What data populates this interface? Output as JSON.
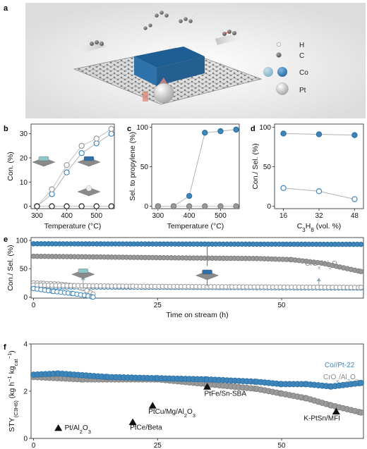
{
  "panel_a": {
    "label": "a",
    "legend": [
      {
        "symbol": "H",
        "color": "#f2f2f2"
      },
      {
        "symbol": "C",
        "color": "#6e6e6e"
      },
      {
        "symbol": "Co",
        "color": "#3c86c0",
        "color2": "#9cc4d6"
      },
      {
        "symbol": "Pt",
        "color": "#cfcfcf"
      }
    ]
  },
  "chart_data": [
    {
      "panel": "b",
      "type": "line",
      "xlabel": "Temperature (°C)",
      "ylabel": "Con. (%)",
      "xlim": [
        280,
        560
      ],
      "ylim": [
        -1,
        34
      ],
      "xticks": [
        300,
        400,
        500
      ],
      "yticks": [
        0,
        10,
        20,
        30
      ],
      "series": [
        {
          "style": "open-blue",
          "x": [
            300,
            350,
            400,
            450,
            500,
            550
          ],
          "y": [
            0,
            5,
            14,
            22,
            26,
            30
          ]
        },
        {
          "style": "open-gray",
          "x": [
            300,
            350,
            400,
            450,
            500,
            550
          ],
          "y": [
            0,
            7,
            17,
            25,
            28,
            32
          ]
        },
        {
          "style": "open-black",
          "x": [
            300,
            350,
            400,
            450,
            500,
            550
          ],
          "y": [
            0,
            0,
            0,
            0,
            0,
            0
          ]
        }
      ]
    },
    {
      "panel": "c",
      "type": "line",
      "xlabel": "Temperature (°C)",
      "ylabel": "Sel. to propylene (%)",
      "xlim": [
        280,
        560
      ],
      "ylim": [
        -3,
        104
      ],
      "xticks": [
        300,
        400,
        500
      ],
      "yticks": [
        0,
        50,
        100
      ],
      "series": [
        {
          "style": "filled-blue",
          "x": [
            300,
            350,
            400,
            450,
            500,
            550
          ],
          "y": [
            0,
            0,
            13,
            93,
            95,
            97
          ]
        },
        {
          "style": "filled-gray",
          "x": [
            300,
            350,
            400,
            450,
            500,
            550
          ],
          "y": [
            0,
            0,
            0,
            0,
            0,
            0
          ]
        }
      ]
    },
    {
      "panel": "d",
      "type": "line",
      "xlabel": "C3H8 (vol. %)",
      "ylabel": "Con./ Sel. (%)",
      "xlim": [
        12,
        52
      ],
      "ylim": [
        -3,
        104
      ],
      "xticks": [
        16,
        32,
        48
      ],
      "yticks": [
        0,
        50,
        100
      ],
      "series": [
        {
          "style": "filled-blue",
          "x": [
            16,
            32,
            48
          ],
          "y": [
            92,
            91,
            90
          ]
        },
        {
          "style": "open-blue",
          "x": [
            16,
            32,
            48
          ],
          "y": [
            23,
            19,
            9
          ]
        }
      ]
    },
    {
      "panel": "e",
      "type": "scatter",
      "xlabel": "Time on stream (h)",
      "ylabel": "Con./ Sel. (%)",
      "xlim": [
        -0.5,
        66.5
      ],
      "ylim": [
        -2,
        105
      ],
      "xticks": [
        0,
        25,
        50
      ],
      "yticks": [
        0,
        50,
        100
      ],
      "annotation": "CrOx/Al2O3",
      "series": [
        {
          "style": "filled-blue",
          "x": [
            0,
            66
          ],
          "y": [
            94,
            93
          ]
        },
        {
          "style": "filled-gray",
          "x": [
            0,
            30,
            45,
            52,
            58,
            66
          ],
          "y": [
            72,
            69,
            68,
            66,
            60,
            45
          ]
        },
        {
          "style": "open-blue",
          "x": [
            0,
            66
          ],
          "y": [
            18,
            16
          ]
        },
        {
          "style": "open-gray",
          "x": [
            0,
            2,
            5,
            8,
            10,
            12
          ],
          "y": [
            25,
            24,
            23,
            20,
            15,
            5
          ]
        },
        {
          "style": "open-gray",
          "x": [
            0,
            20,
            40,
            66
          ],
          "y": [
            21,
            19,
            18,
            17
          ]
        },
        {
          "style": "open-blue",
          "x": [
            0,
            4,
            8,
            11,
            12
          ],
          "y": [
            15,
            10,
            6,
            2,
            0
          ]
        }
      ]
    },
    {
      "panel": "f",
      "type": "scatter",
      "xlabel": "Time on stream (h)",
      "ylabel": "STY(C3H6) (kg h⁻¹ kgcat⁻¹)",
      "xlim": [
        -0.5,
        66.5
      ],
      "ylim": [
        0,
        4
      ],
      "xticks": [
        0,
        25,
        50
      ],
      "yticks": [
        0,
        2,
        4
      ],
      "series": [
        {
          "name": "Co//Pt-22",
          "style": "filled-blue",
          "x": [
            0,
            5,
            15,
            25,
            35,
            45,
            50,
            55,
            60,
            66
          ],
          "y": [
            2.7,
            2.75,
            2.6,
            2.55,
            2.5,
            2.4,
            2.3,
            2.3,
            2.2,
            2.35
          ]
        },
        {
          "name": "CrOx/Al2O3",
          "style": "filled-gray",
          "x": [
            0,
            10,
            25,
            35,
            45,
            50,
            55,
            60,
            66
          ],
          "y": [
            2.6,
            2.5,
            2.5,
            2.3,
            2.1,
            1.9,
            1.7,
            1.4,
            1.1
          ]
        }
      ],
      "benchmarks": [
        {
          "label": "Pt/Al2O3",
          "x": 5,
          "y": 0.45
        },
        {
          "label": "PtCe/Beta",
          "x": 20,
          "y": 0.7
        },
        {
          "label": "PtCu/Mg/Al2O3",
          "x": 24,
          "y": 1.4
        },
        {
          "label": "PtFe/Sn-SBA",
          "x": 35,
          "y": 2.2
        },
        {
          "label": "K-PtSn/MFI",
          "x": 61,
          "y": 1.15
        }
      ]
    }
  ]
}
